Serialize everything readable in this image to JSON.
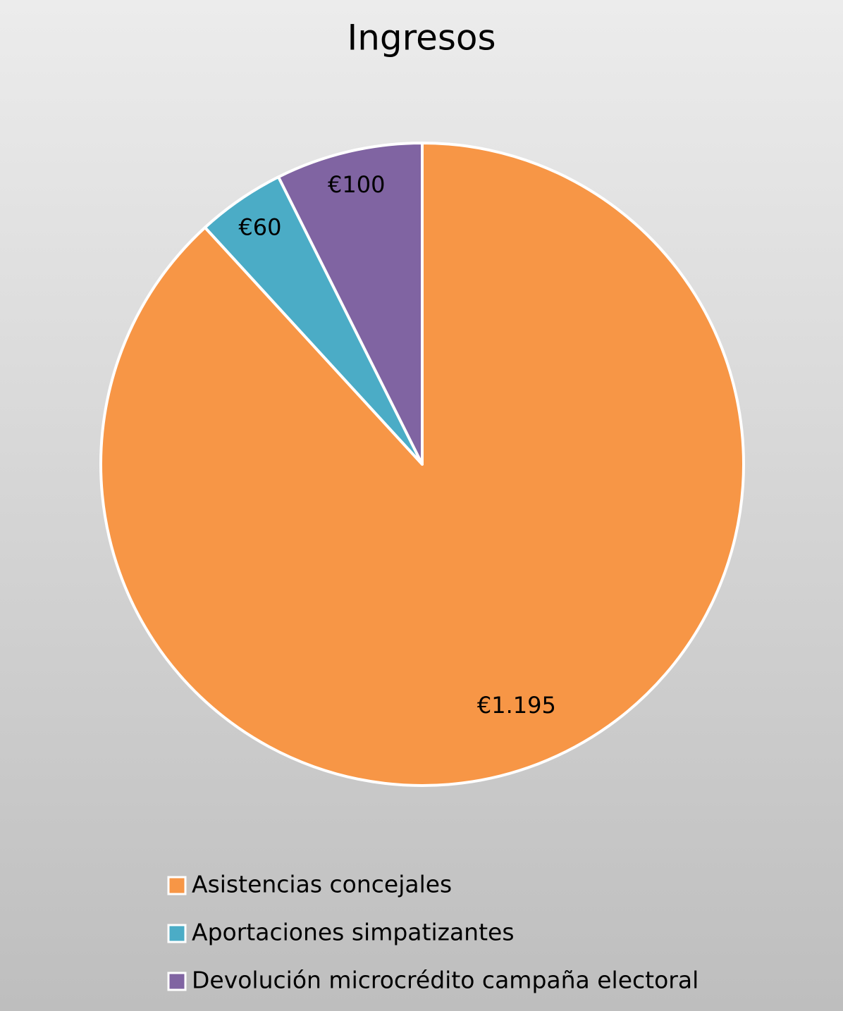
{
  "chart_data": {
    "type": "pie",
    "title": "Ingresos",
    "categories": [
      "Asistencias concejales",
      "Aportaciones simpatizantes",
      "Devolución microcrédito campaña electoral"
    ],
    "values": [
      1195,
      60,
      100
    ],
    "value_labels": [
      "€1.195",
      "€60",
      "€100"
    ],
    "colors": [
      "#f79646",
      "#4bacc6",
      "#8064a2"
    ],
    "legend": "bottom"
  }
}
